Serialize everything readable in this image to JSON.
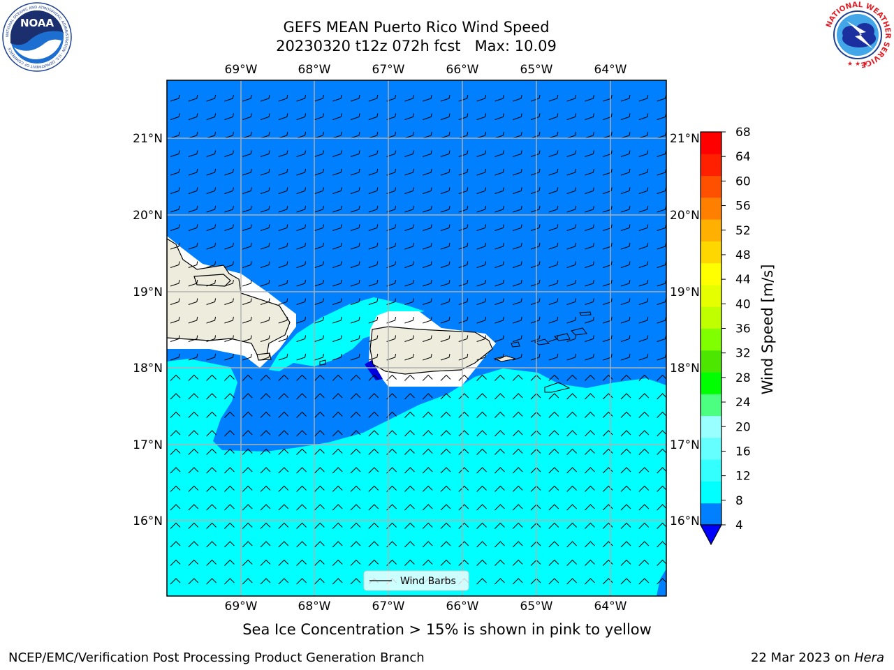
{
  "header": {
    "title_line1": "GEFS MEAN Puerto Rico Wind Speed",
    "title_line2": "20230320 t12z 072h fcst   Max: 10.09"
  },
  "logos": {
    "left": {
      "name": "noaa-logo",
      "text": "NOAA",
      "ring_text": "NATIONAL OCEANIC AND ATMOSPHERIC ADMINISTRATION · U.S. DEPARTMENT OF COMMERCE"
    },
    "right": {
      "name": "nws-logo",
      "ring_text": "NATIONAL WEATHER SERVICE"
    }
  },
  "map": {
    "lon_labels": [
      "69°W",
      "68°W",
      "67°W",
      "66°W",
      "65°W",
      "64°W"
    ],
    "lat_labels": [
      "21°N",
      "20°N",
      "19°N",
      "18°N",
      "17°N",
      "16°N"
    ],
    "legend_label": "Wind Barbs",
    "colors": {
      "ocean_dark": "#0080ff",
      "ocean_light": "#00ffff",
      "land": "#eeecdc",
      "masked": "#ffffff",
      "deep": "#0000dd"
    }
  },
  "colorbar": {
    "label": "Wind Speed [m/s]",
    "ticks": [
      "68",
      "64",
      "60",
      "56",
      "52",
      "48",
      "44",
      "40",
      "36",
      "32",
      "28",
      "24",
      "20",
      "16",
      "12",
      "8",
      "4"
    ],
    "colors_bottom_to_top": [
      "#0080ff",
      "#00ffff",
      "#33ffff",
      "#66ffff",
      "#99ffff",
      "#4dff80",
      "#00ff00",
      "#4ce600",
      "#80ff00",
      "#bfff00",
      "#e6ff00",
      "#ffff00",
      "#ffd700",
      "#ffb000",
      "#ff8000",
      "#ff5000",
      "#ff2000",
      "#ff0000"
    ],
    "extend_color": "#0000ff"
  },
  "caption": "Sea Ice Concentration > 15% is shown in pink to yellow",
  "footer": {
    "left": "NCEP/EMC/Verification Post Processing Product Generation Branch",
    "right_date": "22 Mar 2023 on ",
    "right_host": "Hera"
  }
}
